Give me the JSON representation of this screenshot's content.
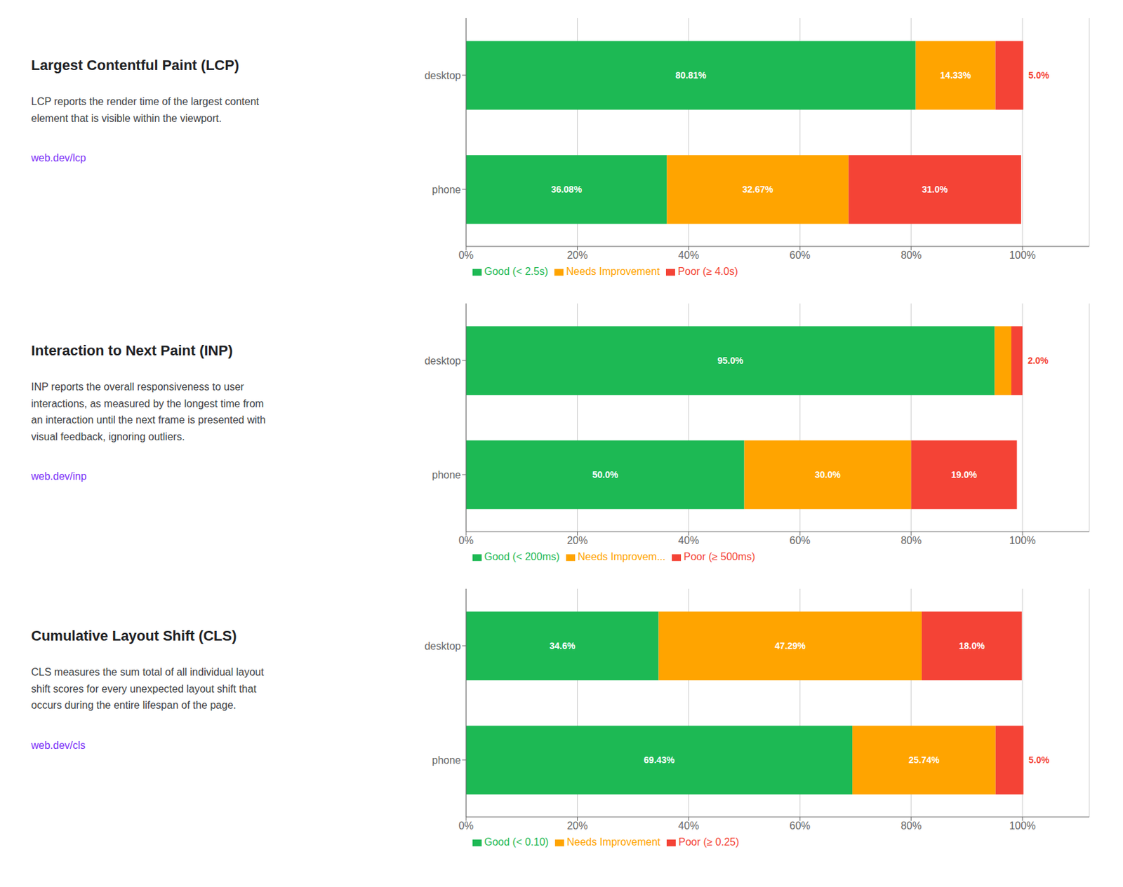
{
  "chart_data": [
    {
      "type": "bar",
      "orientation": "horizontal",
      "stacked": true,
      "grid": true,
      "legend": "bottom",
      "data_labels": true,
      "title": "Largest Contentful Paint (LCP)",
      "annotations": [
        "LCP reports the render time of the largest content",
        "element that is visible within the viewport.",
        "web.dev/lcp"
      ],
      "categories": [
        "desktop",
        "phone"
      ],
      "series": [
        {
          "name": "Good (< 2.5s)",
          "color": "#1db954",
          "values": [
            80.81,
            36.08
          ],
          "value_labels": [
            "80.81%",
            "36.08%"
          ]
        },
        {
          "name": "Needs Improvement",
          "color": "#ffa400",
          "values": [
            14.33,
            32.67
          ],
          "value_labels": [
            "14.33%",
            "32.67%"
          ]
        },
        {
          "name": "Poor (≥ 4.0s)",
          "color": "#f44336",
          "values": [
            5.0,
            31.0
          ],
          "value_labels": [
            "5.0%",
            "31.0%"
          ]
        }
      ],
      "xlim": [
        0,
        112
      ],
      "xticks": [
        {
          "value": 0,
          "label": "0%"
        },
        {
          "value": 20,
          "label": "20%"
        },
        {
          "value": 40,
          "label": "40%"
        },
        {
          "value": 60,
          "label": "60%"
        },
        {
          "value": 80,
          "label": "80%"
        },
        {
          "value": 100,
          "label": "100%"
        }
      ]
    },
    {
      "type": "bar",
      "orientation": "horizontal",
      "stacked": true,
      "grid": true,
      "legend": "bottom",
      "data_labels": true,
      "title": "Interaction to Next Paint (INP)",
      "annotations": [
        "INP reports the overall responsiveness to user",
        "interactions, as measured by the longest time from",
        "an interaction until the next frame is presented with",
        "visual feedback, ignoring outliers.",
        "web.dev/inp"
      ],
      "categories": [
        "desktop",
        "phone"
      ],
      "series": [
        {
          "name": "Good (< 200ms)",
          "color": "#1db954",
          "values": [
            95.0,
            50.0
          ],
          "value_labels": [
            "95.0%",
            "50.0%"
          ]
        },
        {
          "name": "Needs Improvem...",
          "color": "#ffa400",
          "values": [
            3.0,
            30.0
          ],
          "value_labels": [
            null,
            "30.0%"
          ]
        },
        {
          "name": "Poor (≥ 500ms)",
          "color": "#f44336",
          "values": [
            2.0,
            19.0
          ],
          "value_labels": [
            "2.0%",
            "19.0%"
          ]
        }
      ],
      "xlim": [
        0,
        112
      ],
      "xticks": [
        {
          "value": 0,
          "label": "0%"
        },
        {
          "value": 20,
          "label": "20%"
        },
        {
          "value": 40,
          "label": "40%"
        },
        {
          "value": 60,
          "label": "60%"
        },
        {
          "value": 80,
          "label": "80%"
        },
        {
          "value": 100,
          "label": "100%"
        }
      ]
    },
    {
      "type": "bar",
      "orientation": "horizontal",
      "stacked": true,
      "grid": true,
      "legend": "bottom",
      "data_labels": true,
      "title": "Cumulative Layout Shift (CLS)",
      "annotations": [
        "CLS measures the sum total of all individual layout",
        "shift scores for every unexpected layout shift that",
        "occurs during the entire lifespan of the page.",
        "web.dev/cls"
      ],
      "categories": [
        "desktop",
        "phone"
      ],
      "series": [
        {
          "name": "Good (< 0.10)",
          "color": "#1db954",
          "values": [
            34.6,
            69.43
          ],
          "value_labels": [
            "34.6%",
            "69.43%"
          ]
        },
        {
          "name": "Needs Improvement",
          "color": "#ffa400",
          "values": [
            47.29,
            25.74
          ],
          "value_labels": [
            "47.29%",
            "25.74%"
          ]
        },
        {
          "name": "Poor (≥ 0.25)",
          "color": "#f44336",
          "values": [
            18.0,
            5.0
          ],
          "value_labels": [
            "18.0%",
            "5.0%"
          ]
        }
      ],
      "xlim": [
        0,
        112
      ],
      "xticks": [
        {
          "value": 0,
          "label": "0%"
        },
        {
          "value": 20,
          "label": "20%"
        },
        {
          "value": 40,
          "label": "40%"
        },
        {
          "value": 60,
          "label": "60%"
        },
        {
          "value": 80,
          "label": "80%"
        },
        {
          "value": 100,
          "label": "100%"
        }
      ]
    }
  ]
}
